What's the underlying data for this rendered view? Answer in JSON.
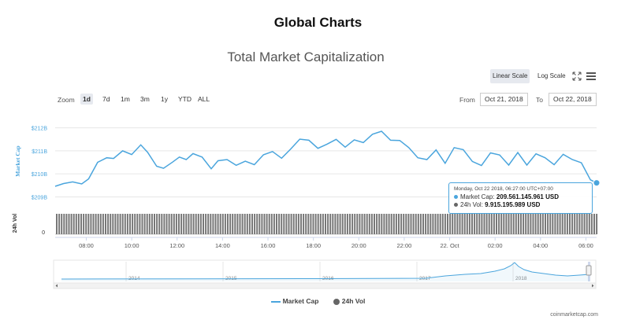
{
  "page": {
    "title": "Global Charts"
  },
  "controls": {
    "linear_scale": "Linear Scale",
    "log_scale": "Log Scale",
    "zoom_label": "Zoom",
    "zoom_options": [
      "1d",
      "7d",
      "1m",
      "3m",
      "1y",
      "YTD",
      "ALL"
    ],
    "zoom_selected": "1d",
    "from_label": "From",
    "from_value": "Oct 21, 2018",
    "to_label": "To",
    "to_value": "Oct 22, 2018"
  },
  "tooltip": {
    "header": "Monday, Oct 22 2018, 06:27:00 UTC+07:00",
    "market_cap_label": "Market Cap:",
    "market_cap_value": "209.561.145.961 USD",
    "vol_label": "24h Vol:",
    "vol_value": "9.915.195.989 USD"
  },
  "legend": {
    "market_cap": "Market Cap",
    "vol": "24h Vol"
  },
  "credit": "coinmarketcap.com",
  "colors": {
    "market_cap": "#4aa5dd",
    "vol": "#666666",
    "accent_bg": "#e6e9ef"
  },
  "chart_data": {
    "type": "line",
    "title": "Total Market Capitalization",
    "ylabel": "Market Cap",
    "ylabel2": "24h Vol",
    "ylim": [
      2090,
      2131
    ],
    "yticks": [
      2096,
      2106,
      2116,
      2126
    ],
    "ytick_labels": [
      "$209B",
      "$210B",
      "$211B",
      "$212B"
    ],
    "vol_tick_label": "0",
    "xlim": [
      6.63,
      30.47
    ],
    "x_ticks": [
      8,
      10,
      12,
      14,
      16,
      18,
      20,
      22,
      24,
      26,
      28,
      30
    ],
    "x_tick_labels": [
      "08:00",
      "10:00",
      "12:00",
      "14:00",
      "16:00",
      "18:00",
      "20:00",
      "22:00",
      "22. Oct",
      "02:00",
      "04:00",
      "06:00"
    ],
    "series": [
      {
        "name": "Market Cap",
        "x": [
          6.63,
          7.0,
          7.4,
          7.8,
          8.1,
          8.5,
          8.9,
          9.2,
          9.6,
          10.0,
          10.4,
          10.7,
          11.1,
          11.4,
          11.8,
          12.1,
          12.4,
          12.7,
          13.1,
          13.5,
          13.8,
          14.2,
          14.6,
          15.0,
          15.4,
          15.8,
          16.2,
          16.6,
          17.0,
          17.4,
          17.8,
          18.2,
          18.6,
          19.0,
          19.4,
          19.8,
          20.2,
          20.6,
          21.0,
          21.4,
          21.8,
          22.2,
          22.6,
          23.0,
          23.4,
          23.8,
          24.2,
          24.6,
          25.0,
          25.4,
          25.8,
          26.2,
          26.6,
          27.0,
          27.4,
          27.8,
          28.2,
          28.6,
          29.0,
          29.4,
          29.8,
          30.2,
          30.47
        ],
        "values": [
          2100.6,
          2101.8,
          2102.5,
          2101.6,
          2103.8,
          2111.0,
          2113.0,
          2112.7,
          2116.0,
          2114.4,
          2118.6,
          2115.4,
          2109.3,
          2108.4,
          2111.1,
          2113.3,
          2112.2,
          2114.8,
          2113.3,
          2108.2,
          2111.7,
          2112.2,
          2109.7,
          2111.5,
          2110.0,
          2114.3,
          2115.7,
          2112.8,
          2116.8,
          2121.1,
          2120.6,
          2117.1,
          2118.9,
          2121.0,
          2117.6,
          2120.8,
          2119.6,
          2123.2,
          2124.5,
          2120.6,
          2120.5,
          2117.4,
          2113.0,
          2112.2,
          2116.4,
          2110.6,
          2117.4,
          2116.5,
          2111.4,
          2109.6,
          2115.1,
          2114.2,
          2109.8,
          2115.3,
          2109.8,
          2114.7,
          2113.0,
          2110.0,
          2114.5,
          2112.2,
          2110.8,
          2103.4,
          2102.1
        ]
      },
      {
        "name": "24h Vol"
      }
    ],
    "navigator_years": [
      "2014",
      "2015",
      "2016",
      "2017",
      "2018"
    ],
    "grid": true,
    "legend_position": "bottom"
  }
}
